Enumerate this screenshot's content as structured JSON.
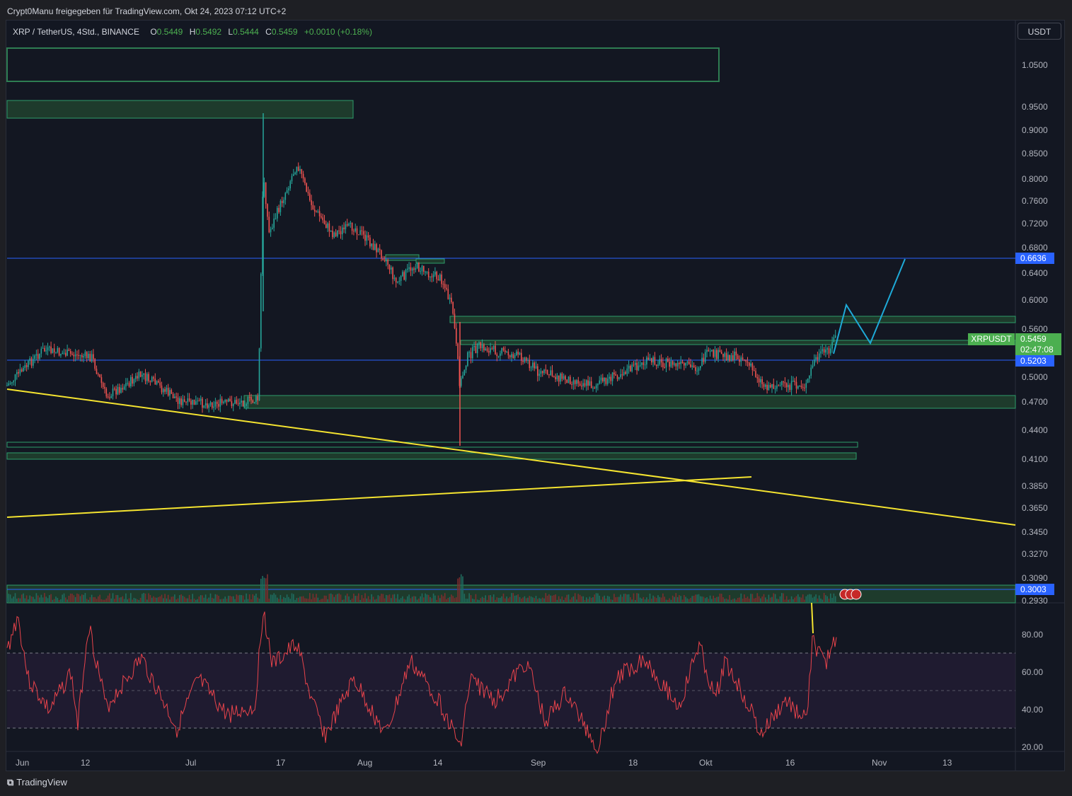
{
  "header": {
    "attribution": "Crypt0Manu freigegeben für TradingView.com, Okt 24, 2023 07:12 UTC+2"
  },
  "legend": {
    "symbol": "XRP / TetherUS, 4Std., BINANCE",
    "o_label": "O",
    "o_value": "0.5449",
    "h_label": "H",
    "h_value": "0.5492",
    "l_label": "L",
    "l_value": "0.5444",
    "c_label": "C",
    "c_value": "0.5459",
    "change": "+0.0010 (+0.18%)"
  },
  "currency_button": "USDT",
  "price_axis": [
    "1.0500",
    "0.9500",
    "0.9000",
    "0.8500",
    "0.8000",
    "0.7600",
    "0.7200",
    "0.6800",
    "0.6400",
    "0.6000",
    "0.5600",
    "0.5000",
    "0.4700",
    "0.4400",
    "0.4100",
    "0.3850",
    "0.3650",
    "0.3450",
    "0.3270",
    "0.3090",
    "0.2930"
  ],
  "price_tags": {
    "upper_line": "0.6636",
    "current_price": "0.5459",
    "countdown": "02:47:08",
    "symbol_tag": "XRPUSDT",
    "lower_line": "0.5203",
    "bottom_line": "0.3003"
  },
  "rsi_axis": [
    "80.00",
    "60.00",
    "40.00",
    "20.00"
  ],
  "time_axis": [
    "Jun",
    "12",
    "Jul",
    "17",
    "Aug",
    "14",
    "Sep",
    "18",
    "Okt",
    "16",
    "Nov",
    "13"
  ],
  "colors": {
    "background": "#131722",
    "up": "#26a69a",
    "down": "#ef5350",
    "zone_fill": "#1e3b2c",
    "zone_border": "#2e7d52",
    "blue_line": "#2962ff",
    "trend_line": "#f5e430",
    "projection": "#1eaad8",
    "rsi_line": "#e8434b"
  },
  "footer": {
    "brand": "TradingView"
  }
}
